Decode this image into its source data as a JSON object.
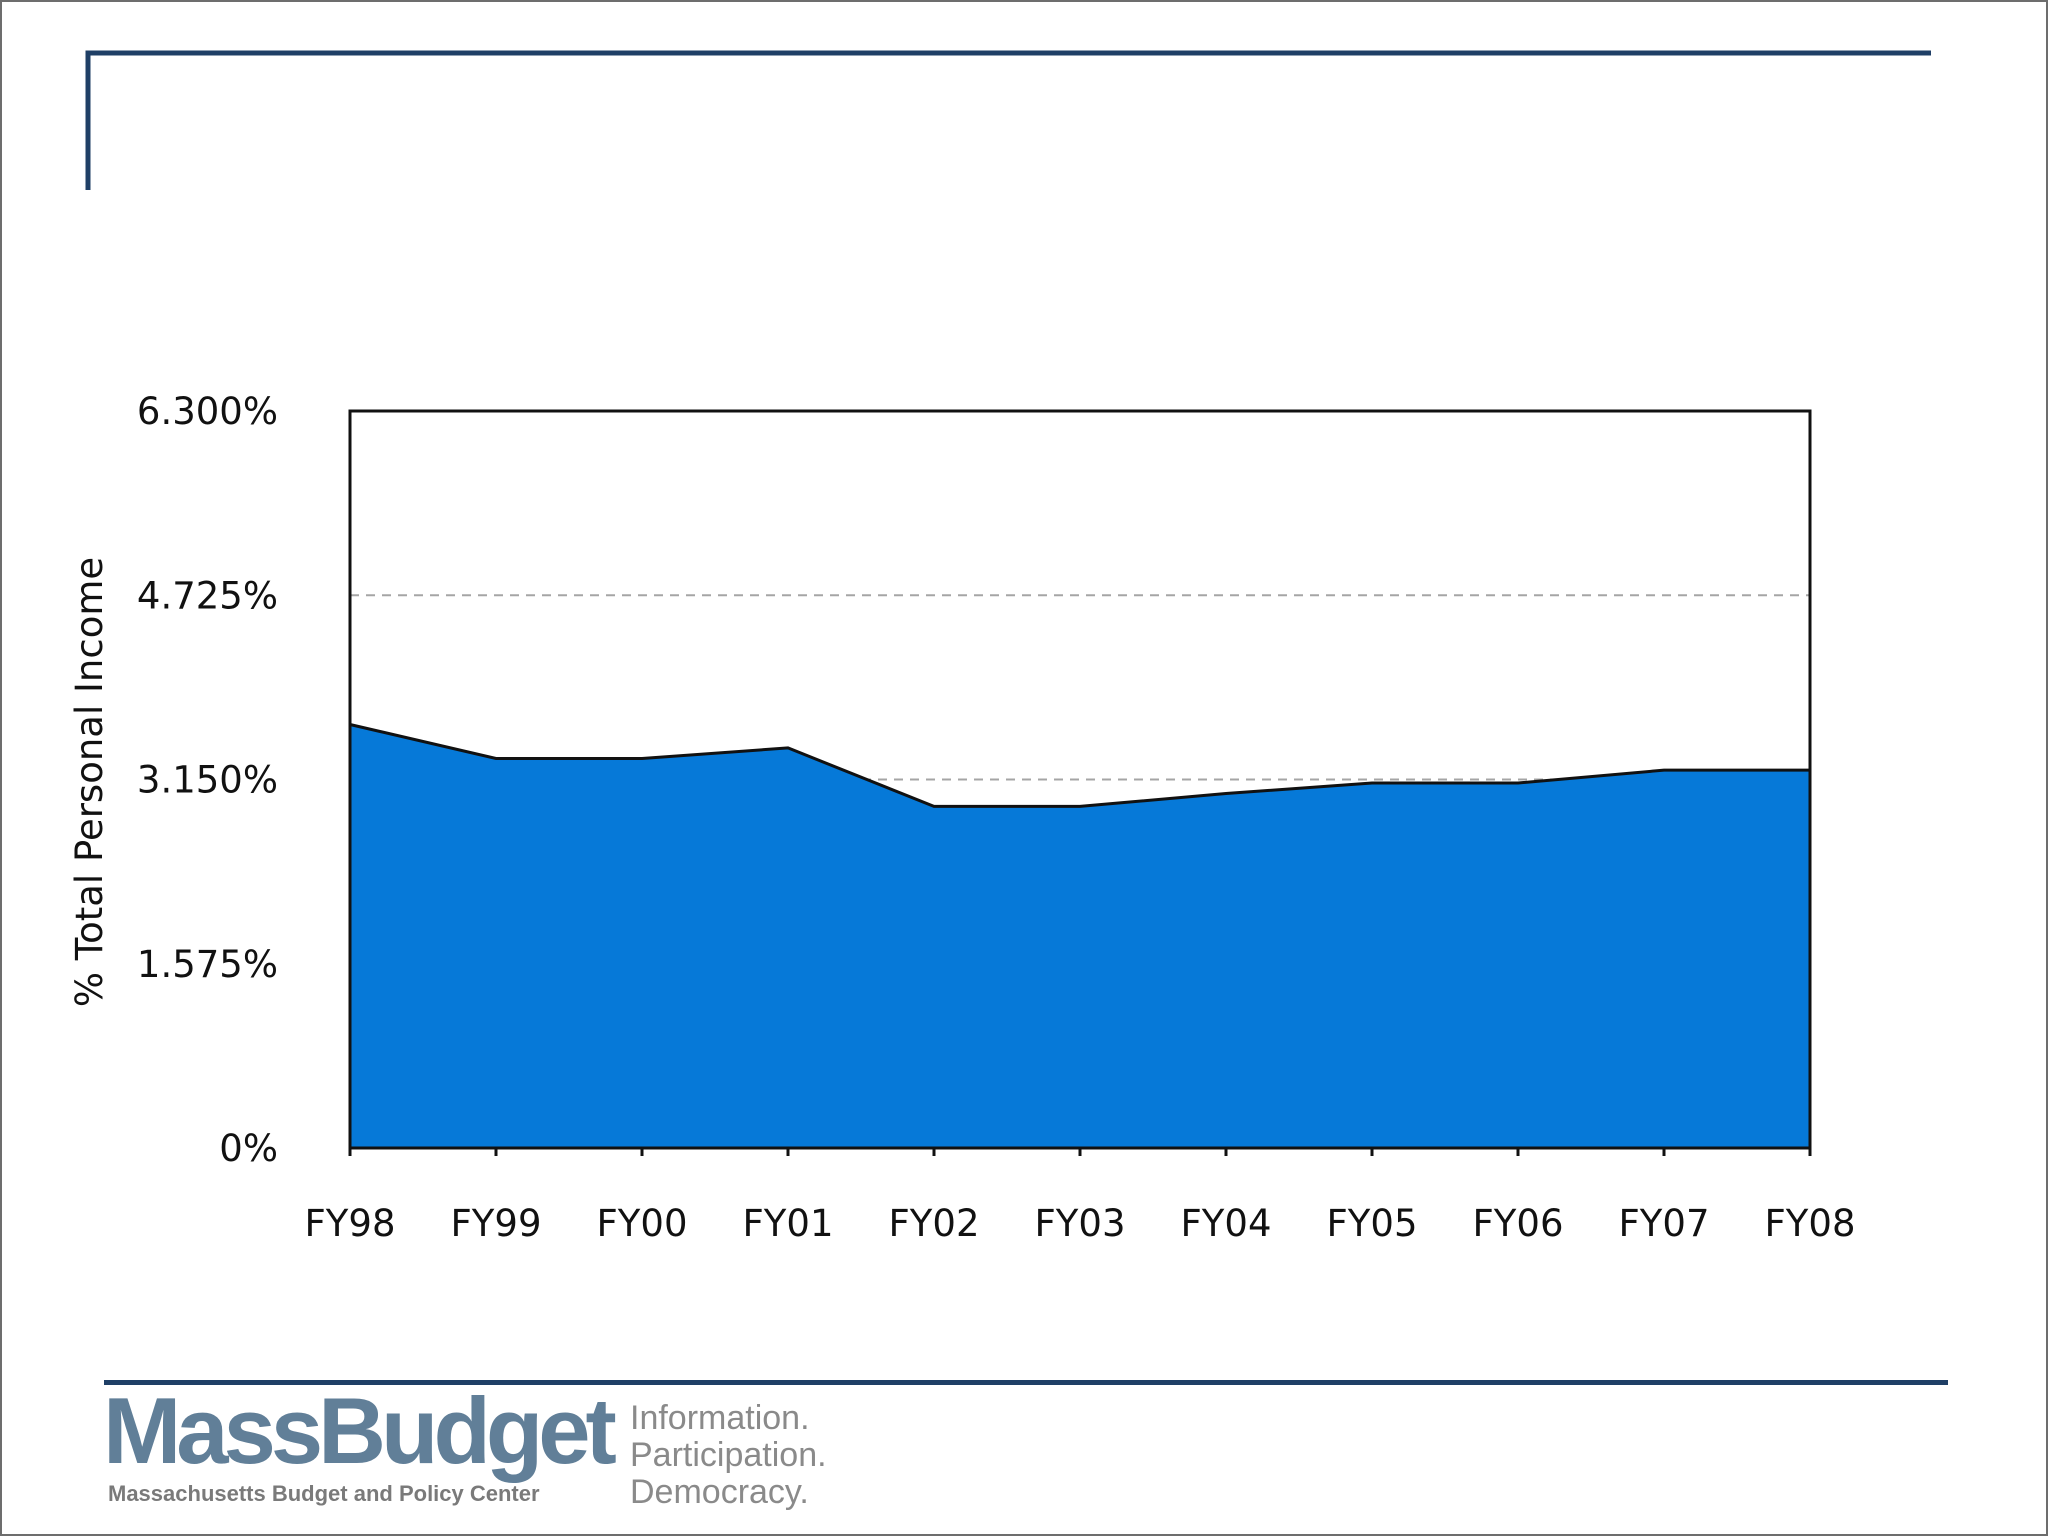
{
  "chart_data": {
    "type": "area",
    "title": "",
    "xlabel": "",
    "ylabel": "% Total Personal Income",
    "categories": [
      "FY98",
      "FY99",
      "FY00",
      "FY01",
      "FY02",
      "FY03",
      "FY04",
      "FY05",
      "FY06",
      "FY07",
      "FY08"
    ],
    "series": [
      {
        "name": "% Total Personal Income",
        "values": [
          3.62,
          3.33,
          3.33,
          3.42,
          2.92,
          2.92,
          3.03,
          3.12,
          3.12,
          3.23,
          3.23
        ],
        "color": "#0679d8"
      }
    ],
    "ylim": [
      0,
      6.3
    ],
    "yticks": [
      0,
      1.575,
      3.15,
      4.725,
      6.3
    ],
    "ytick_labels": [
      "0%",
      "1.575%",
      "3.150%",
      "4.725%",
      "6.300%"
    ],
    "grid": "dashed horizontal"
  },
  "colors": {
    "frame_accent": "#1f3f66",
    "area_fill": "#0679d8",
    "logo_text": "#617f98"
  },
  "footer": {
    "logo": "MassBudget",
    "organization": "Massachusetts Budget and Policy Center",
    "tagline": [
      "Information.",
      "Participation.",
      "Democracy."
    ]
  }
}
